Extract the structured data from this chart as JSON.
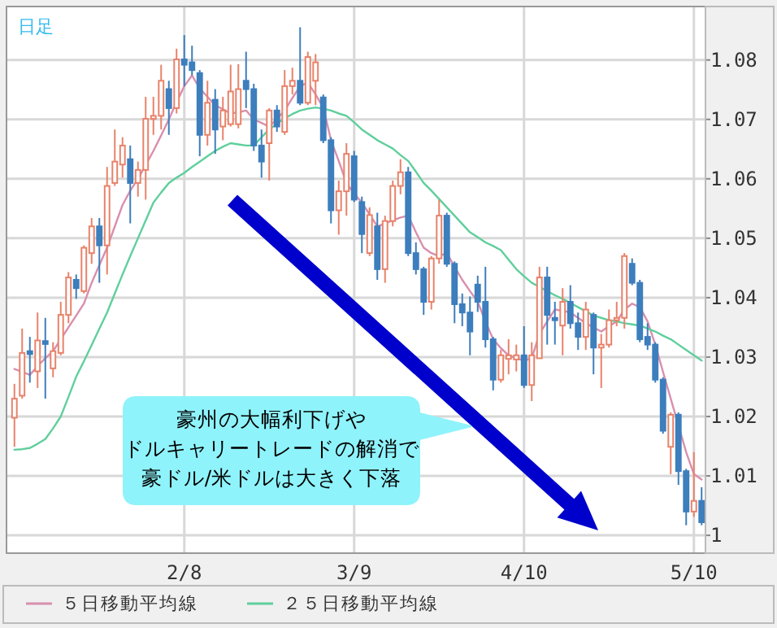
{
  "chart_data": {
    "type": "candlestick",
    "categories": [
      null,
      null,
      null,
      null,
      null,
      null,
      null,
      null,
      null,
      null,
      null,
      null,
      null,
      null,
      null,
      null,
      null,
      null,
      null,
      null,
      null,
      null,
      "2/8",
      null,
      null,
      null,
      null,
      null,
      null,
      null,
      null,
      null,
      null,
      null,
      null,
      null,
      null,
      null,
      null,
      null,
      null,
      null,
      null,
      null,
      "3/9",
      null,
      null,
      null,
      null,
      null,
      null,
      null,
      null,
      null,
      null,
      null,
      null,
      null,
      null,
      null,
      null,
      null,
      null,
      null,
      null,
      null,
      "4/10",
      null,
      null,
      null,
      null,
      null,
      null,
      null,
      null,
      null,
      null,
      null,
      null,
      null,
      null,
      null,
      null,
      null,
      null,
      null,
      null,
      null,
      "5/10",
      null
    ],
    "ohlc": [
      [
        1.0198,
        1.0255,
        1.0149,
        1.023
      ],
      [
        1.0235,
        1.0348,
        1.023,
        1.0307
      ],
      [
        1.031,
        1.0334,
        1.0257,
        1.0305
      ],
      [
        1.0276,
        1.0375,
        1.0248,
        1.0328
      ],
      [
        1.0327,
        1.0366,
        1.023,
        1.0322
      ],
      [
        1.0281,
        1.0325,
        1.0266,
        1.031
      ],
      [
        1.0307,
        1.0393,
        1.0303,
        1.0371
      ],
      [
        1.0371,
        1.0443,
        1.0357,
        1.0434
      ],
      [
        1.043,
        1.0439,
        1.0398,
        1.0416
      ],
      [
        1.0411,
        1.0488,
        1.0407,
        1.0484
      ],
      [
        1.0475,
        1.0534,
        1.0457,
        1.052
      ],
      [
        1.052,
        1.0534,
        1.0425,
        1.0488
      ],
      [
        1.0488,
        1.062,
        1.0439,
        1.0588
      ],
      [
        1.0593,
        1.0683,
        1.0588,
        1.0629
      ],
      [
        1.0624,
        1.067,
        1.0602,
        1.0656
      ],
      [
        1.0633,
        1.0656,
        1.0525,
        1.0593
      ],
      [
        1.0593,
        1.0629,
        1.057,
        1.0615
      ],
      [
        1.0615,
        1.0738,
        1.0565,
        1.0701
      ],
      [
        1.0701,
        1.0738,
        1.0674,
        1.0706
      ],
      [
        1.0706,
        1.0792,
        1.0683,
        1.0765
      ],
      [
        1.0751,
        1.0765,
        1.0674,
        1.0719
      ],
      [
        1.0719,
        1.0819,
        1.071,
        1.0801
      ],
      [
        1.0801,
        1.0842,
        1.0756,
        1.0792
      ],
      [
        1.0796,
        1.0824,
        1.0774,
        1.0783
      ],
      [
        1.0778,
        1.0783,
        1.0638,
        1.0674
      ],
      [
        1.0674,
        1.0765,
        1.0656,
        1.0728
      ],
      [
        1.0733,
        1.0751,
        1.0642,
        1.0683
      ],
      [
        1.0688,
        1.0738,
        1.0665,
        1.0715
      ],
      [
        1.0692,
        1.0792,
        1.0688,
        1.0747
      ],
      [
        1.0692,
        1.0793,
        1.0685,
        1.0751
      ],
      [
        1.0765,
        1.0814,
        1.0719,
        1.0751
      ],
      [
        1.0751,
        1.076,
        1.0647,
        1.0656
      ],
      [
        1.0656,
        1.0683,
        1.0602,
        1.0629
      ],
      [
        1.066,
        1.0719,
        1.0597,
        1.0715
      ],
      [
        1.0715,
        1.0724,
        1.0679,
        1.0688
      ],
      [
        1.0679,
        1.0783,
        1.0674,
        1.0756
      ],
      [
        1.0756,
        1.0787,
        1.0742,
        1.0765
      ],
      [
        1.0765,
        1.0855,
        1.0724,
        1.0728
      ],
      [
        1.0728,
        1.0814,
        1.0724,
        1.0805
      ],
      [
        1.0765,
        1.081,
        1.0724,
        1.0796
      ],
      [
        1.0737,
        1.0742,
        1.066,
        1.0665
      ],
      [
        1.0665,
        1.067,
        1.0525,
        1.0547
      ],
      [
        1.0547,
        1.0597,
        1.0506,
        1.0579
      ],
      [
        1.0579,
        1.066,
        1.0538,
        1.0642
      ],
      [
        1.0638,
        1.0647,
        1.0561,
        1.0565
      ],
      [
        1.0561,
        1.057,
        1.0475,
        1.0507
      ],
      [
        1.0475,
        1.0552,
        1.047,
        1.0539
      ],
      [
        1.052,
        1.0543,
        1.043,
        1.0448
      ],
      [
        1.0448,
        1.0538,
        1.0425,
        1.0529
      ],
      [
        1.0529,
        1.0597,
        1.052,
        1.0588
      ],
      [
        1.0588,
        1.0633,
        1.0574,
        1.0611
      ],
      [
        1.0611,
        1.062,
        1.047,
        1.0475
      ],
      [
        1.0475,
        1.0493,
        1.0439,
        1.0448
      ],
      [
        1.0448,
        1.0452,
        1.0371,
        1.0393
      ],
      [
        1.0393,
        1.047,
        1.038,
        1.0466
      ],
      [
        1.0466,
        1.0565,
        1.0457,
        1.0538
      ],
      [
        1.0538,
        1.0543,
        1.0452,
        1.0457
      ],
      [
        1.0457,
        1.0461,
        1.0357,
        1.0389
      ],
      [
        1.0389,
        1.0407,
        1.0352,
        1.0375
      ],
      [
        1.0375,
        1.0402,
        1.0303,
        1.0343
      ],
      [
        1.0422,
        1.0437,
        1.0376,
        1.0393
      ],
      [
        1.0393,
        1.0452,
        1.0316,
        1.033
      ],
      [
        1.033,
        1.0334,
        1.0244,
        1.0262
      ],
      [
        1.0262,
        1.0312,
        1.0257,
        1.0303
      ],
      [
        1.0297,
        1.033,
        1.0271,
        1.0303
      ],
      [
        1.0296,
        1.0321,
        1.0276,
        1.0303
      ],
      [
        1.0303,
        1.0352,
        1.0248,
        1.0253
      ],
      [
        1.0253,
        1.0325,
        1.0226,
        1.0303
      ],
      [
        1.0298,
        1.0452,
        1.0298,
        1.0434
      ],
      [
        1.0434,
        1.0452,
        1.0321,
        1.0371
      ],
      [
        1.0366,
        1.0393,
        1.0321,
        1.0362
      ],
      [
        1.0353,
        1.0416,
        1.0303,
        1.0393
      ],
      [
        1.0393,
        1.0421,
        1.0348,
        1.0357
      ],
      [
        1.0357,
        1.0375,
        1.0312,
        1.0334
      ],
      [
        1.0334,
        1.0393,
        1.0312,
        1.038
      ],
      [
        1.0371,
        1.0375,
        1.0271,
        1.0316
      ],
      [
        1.0316,
        1.0339,
        1.0248,
        1.0321
      ],
      [
        1.0321,
        1.038,
        1.0316,
        1.0362
      ],
      [
        1.0362,
        1.0393,
        1.0352,
        1.0366
      ],
      [
        1.0366,
        1.0475,
        1.0348,
        1.047
      ],
      [
        1.0457,
        1.0466,
        1.0421,
        1.0425
      ],
      [
        1.0425,
        1.043,
        1.0325,
        1.033
      ],
      [
        1.0334,
        1.0357,
        1.0312,
        1.0321
      ],
      [
        1.0321,
        1.0325,
        1.0257,
        1.0262
      ],
      [
        1.0262,
        1.0266,
        1.0171,
        1.0176
      ],
      [
        1.0149,
        1.0207,
        1.0103,
        1.0203
      ],
      [
        1.0203,
        1.0207,
        1.0085,
        1.0108
      ],
      [
        1.0108,
        1.0112,
        1.0017,
        1.004
      ],
      [
        1.004,
        1.014,
        1.0031,
        1.0058
      ],
      [
        1.0058,
        1.0081,
        1.0017,
        1.0022
      ]
    ],
    "series": [
      {
        "name": "５日移動平均線",
        "type": "line",
        "color": "#d98fae",
        "values": [
          1.028,
          1.0275,
          1.027,
          1.0285,
          1.0298,
          1.031,
          1.033,
          1.035,
          1.037,
          1.039,
          1.0425,
          1.0455,
          1.0484,
          1.052,
          1.0556,
          1.058,
          1.06,
          1.0623,
          1.0647,
          1.0673,
          1.07,
          1.0729,
          1.0756,
          1.0774,
          1.0752,
          1.0738,
          1.0724,
          1.0717,
          1.071,
          1.0712,
          1.0715,
          1.07,
          1.0694,
          1.0688,
          1.0701,
          1.0715,
          1.0736,
          1.0756,
          1.0762,
          1.0742,
          1.072,
          1.0665,
          1.063,
          1.0593,
          1.0575,
          1.056,
          1.054,
          1.052,
          1.0525,
          1.053,
          1.0535,
          1.0538,
          1.051,
          1.0484,
          1.0475,
          1.047,
          1.0475,
          1.0452,
          1.043,
          1.0411,
          1.0393,
          1.036,
          1.033,
          1.0315,
          1.0303,
          1.0298,
          1.0294,
          1.0298,
          1.0339,
          1.036,
          1.038,
          1.0378,
          1.0375,
          1.0366,
          1.0357,
          1.035,
          1.0343,
          1.0352,
          1.036,
          1.038,
          1.039,
          1.0384,
          1.036,
          1.0321,
          1.0275,
          1.023,
          1.0185,
          1.014,
          1.0103,
          1.0094
        ]
      },
      {
        "name": "２５日移動平均線",
        "type": "line",
        "color": "#5fcf9c",
        "values": [
          1.0144,
          1.0145,
          1.0147,
          1.0154,
          1.0162,
          1.018,
          1.02,
          1.0233,
          1.0267,
          1.0293,
          1.032,
          1.0348,
          1.0375,
          1.0407,
          1.0439,
          1.047,
          1.05,
          1.053,
          1.056,
          1.0577,
          1.0593,
          1.0602,
          1.061,
          1.062,
          1.0629,
          1.0638,
          1.0647,
          1.0654,
          1.066,
          1.0658,
          1.0656,
          1.0656,
          1.067,
          1.0683,
          1.0693,
          1.0702,
          1.0709,
          1.0715,
          1.0718,
          1.072,
          1.0718,
          1.0715,
          1.071,
          1.0706,
          1.0695,
          1.0683,
          1.0674,
          1.0665,
          1.0658,
          1.0651,
          1.064,
          1.063,
          1.0612,
          1.0593,
          1.058,
          1.0566,
          1.0552,
          1.0538,
          1.0524,
          1.051,
          1.0502,
          1.0493,
          1.0487,
          1.048,
          1.0464,
          1.0448,
          1.0436,
          1.0425,
          1.0418,
          1.0411,
          1.0404,
          1.0398,
          1.0391,
          1.0384,
          1.0377,
          1.037,
          1.0366,
          1.0362,
          1.036,
          1.0357,
          1.0355,
          1.0353,
          1.0348,
          1.0343,
          1.0336,
          1.033,
          1.0321,
          1.0312,
          1.0303,
          1.0294
        ]
      }
    ],
    "ylim": [
      0.997,
      1.089
    ],
    "yticks": [
      1,
      1.01,
      1.02,
      1.03,
      1.04,
      1.05,
      1.06,
      1.07,
      1.08
    ],
    "grid": true,
    "legend": "bottom",
    "annotations": [
      "日足",
      "豪州の大幅利下げや",
      "ドルキャリートレードの解消で",
      "豪ドル/米ドルは大きく下落"
    ]
  }
}
